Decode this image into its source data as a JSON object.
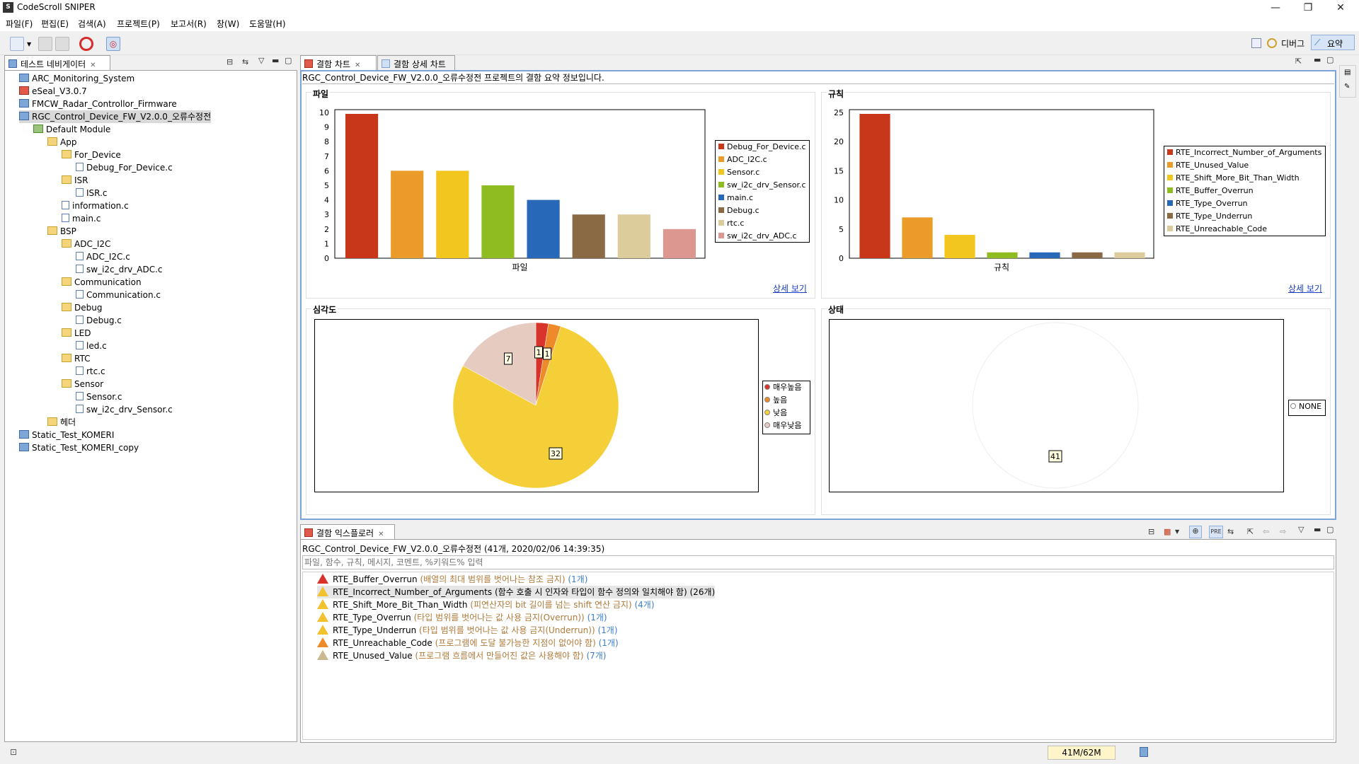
{
  "window": {
    "title": "CodeScroll SNIPER",
    "controls": [
      "—",
      "❐",
      "✕"
    ]
  },
  "menu": [
    "파일(F)",
    "편집(E)",
    "검색(A)",
    "프로젝트(P)",
    "보고서(R)",
    "창(W)",
    "도움말(H)"
  ],
  "perspectives": {
    "debug": "디버그",
    "summary": "요약"
  },
  "navigator": {
    "title": "테스트 네비게이터",
    "tree": [
      {
        "label": "ARC_Monitoring_System",
        "indent": 0,
        "icon": "project"
      },
      {
        "label": "eSeal_V3.0.7",
        "indent": 0,
        "icon": "project-error"
      },
      {
        "label": "FMCW_Radar_Controllor_Firmware",
        "indent": 0,
        "icon": "project"
      },
      {
        "label": "RGC_Control_Device_FW_V2.0.0_오류수정전",
        "indent": 0,
        "icon": "project",
        "selected": true
      },
      {
        "label": "Default Module",
        "indent": 1,
        "icon": "module"
      },
      {
        "label": "App",
        "indent": 2,
        "icon": "folder"
      },
      {
        "label": "For_Device",
        "indent": 3,
        "icon": "folder"
      },
      {
        "label": "Debug_For_Device.c",
        "indent": 4,
        "icon": "file"
      },
      {
        "label": "ISR",
        "indent": 3,
        "icon": "folder"
      },
      {
        "label": "ISR.c",
        "indent": 4,
        "icon": "file"
      },
      {
        "label": "information.c",
        "indent": 3,
        "icon": "file"
      },
      {
        "label": "main.c",
        "indent": 3,
        "icon": "file"
      },
      {
        "label": "BSP",
        "indent": 2,
        "icon": "folder"
      },
      {
        "label": "ADC_I2C",
        "indent": 3,
        "icon": "folder"
      },
      {
        "label": "ADC_I2C.c",
        "indent": 4,
        "icon": "file"
      },
      {
        "label": "sw_i2c_drv_ADC.c",
        "indent": 4,
        "icon": "file"
      },
      {
        "label": "Communication",
        "indent": 3,
        "icon": "folder"
      },
      {
        "label": "Communication.c",
        "indent": 4,
        "icon": "file"
      },
      {
        "label": "Debug",
        "indent": 3,
        "icon": "folder"
      },
      {
        "label": "Debug.c",
        "indent": 4,
        "icon": "file"
      },
      {
        "label": "LED",
        "indent": 3,
        "icon": "folder"
      },
      {
        "label": "led.c",
        "indent": 4,
        "icon": "file"
      },
      {
        "label": "RTC",
        "indent": 3,
        "icon": "folder"
      },
      {
        "label": "rtc.c",
        "indent": 4,
        "icon": "file"
      },
      {
        "label": "Sensor",
        "indent": 3,
        "icon": "folder"
      },
      {
        "label": "Sensor.c",
        "indent": 4,
        "icon": "file"
      },
      {
        "label": "sw_i2c_drv_Sensor.c",
        "indent": 4,
        "icon": "file"
      },
      {
        "label": "헤더",
        "indent": 2,
        "icon": "folder"
      },
      {
        "label": "Static_Test_KOMERI",
        "indent": 0,
        "icon": "project"
      },
      {
        "label": "Static_Test_KOMERI_copy",
        "indent": 0,
        "icon": "project"
      }
    ]
  },
  "editor_tabs": {
    "chart": "결함 차트",
    "detail": "결함 상세 차트"
  },
  "summary_text": "RGC_Control_Device_FW_V2.0.0_오류수정전 프로젝트의 결함 요약 정보입니다.",
  "sections": {
    "file": "파일",
    "rule": "규칙",
    "severity": "심각도",
    "status": "상태"
  },
  "detail_link": "상세 보기",
  "colors": [
    "#c8371a",
    "#eb9b29",
    "#f2c51f",
    "#8fbc21",
    "#2868b8",
    "#8a6a45",
    "#dccb9b",
    "#dc9890"
  ],
  "chart_data": [
    {
      "type": "bar",
      "xlabel": "파일",
      "ylim": [
        0,
        10
      ],
      "yticks": [
        0,
        1,
        2,
        3,
        4,
        5,
        6,
        7,
        8,
        9,
        10
      ],
      "categories": [
        "Debug_For_Device.c",
        "ADC_I2C.c",
        "Sensor.c",
        "sw_i2c_drv_Sensor.c",
        "main.c",
        "Debug.c",
        "rtc.c",
        "sw_i2c_drv_ADC.c"
      ],
      "values": [
        10,
        6,
        6,
        5,
        4,
        3,
        3,
        2
      ]
    },
    {
      "type": "bar",
      "xlabel": "규칙",
      "ylim": [
        0,
        25
      ],
      "yticks": [
        0,
        5,
        10,
        15,
        20,
        25
      ],
      "categories": [
        "RTE_Incorrect_Number_of_Arguments",
        "RTE_Unused_Value",
        "RTE_Shift_More_Bit_Than_Width",
        "RTE_Buffer_Overrun",
        "RTE_Type_Overrun",
        "RTE_Type_Underrun",
        "RTE_Unreachable_Code"
      ],
      "values": [
        26,
        7,
        4,
        1,
        1,
        1,
        1
      ]
    },
    {
      "type": "pie",
      "categories": [
        "매우높음",
        "높음",
        "낮음",
        "매우낮음"
      ],
      "values": [
        1,
        1,
        32,
        7
      ],
      "colors": [
        "#d9342b",
        "#ef8a2a",
        "#f5cf38",
        "#e6cbc0"
      ]
    },
    {
      "type": "pie",
      "categories": [
        "NONE"
      ],
      "values": [
        41
      ],
      "colors": [
        "#ffffff"
      ]
    }
  ],
  "explorer": {
    "title": "결함 익스플로러",
    "header": "RGC_Control_Device_FW_V2.0.0_오류수정전 (41개, 2020/02/06 14:39:35)",
    "filter_placeholder": "파일, 함수, 규칙, 메시지, 코멘트, %키워드% 입력",
    "rows": [
      {
        "rule": "RTE_Buffer_Overrun",
        "desc": "(배열의 최대 범위를 벗어나는 참조 금지)",
        "count": "(1개)",
        "level": "red"
      },
      {
        "rule": "RTE_Incorrect_Number_of_Arguments",
        "desc": "(함수 호출 시 인자와 타입이 함수 정의와 일치해야 함)",
        "count": "(26개)",
        "level": "yellow",
        "selected": true
      },
      {
        "rule": "RTE_Shift_More_Bit_Than_Width",
        "desc": "(피연산자의 bit 길이를 넘는 shift 연산 금지)",
        "count": "(4개)",
        "level": "yellow"
      },
      {
        "rule": "RTE_Type_Overrun",
        "desc": "(타입 범위를 벗어나는 값 사용 금지(Overrun))",
        "count": "(1개)",
        "level": "yellow"
      },
      {
        "rule": "RTE_Type_Underrun",
        "desc": "(타입 범위를 벗어나는 값 사용 금지(Underrun))",
        "count": "(1개)",
        "level": "yellow"
      },
      {
        "rule": "RTE_Unreachable_Code",
        "desc": "(프로그램에 도달 불가능한 지점이 없어야 함)",
        "count": "(1개)",
        "level": "orange"
      },
      {
        "rule": "RTE_Unused_Value",
        "desc": "(프로그램 흐름에서 만들어진 값은 사용해야 함)",
        "count": "(7개)",
        "level": "tan"
      }
    ]
  },
  "status_bar": {
    "memory": "41M/62M"
  }
}
